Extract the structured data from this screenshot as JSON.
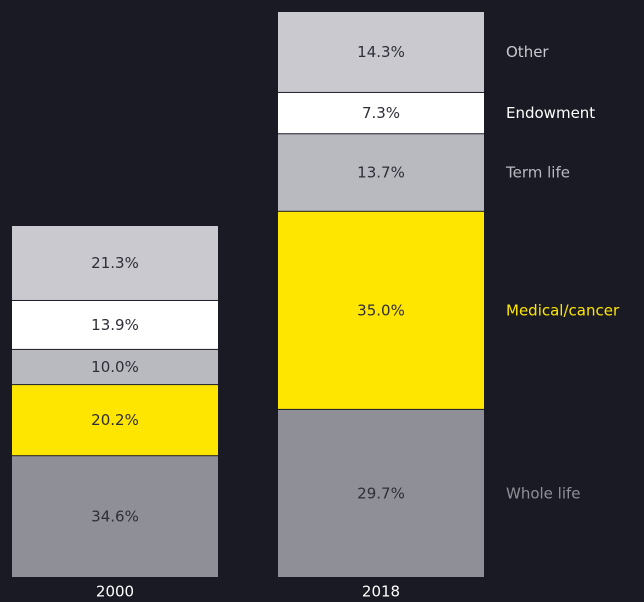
{
  "chart_data": {
    "type": "stacked_bar",
    "categories": [
      "2000",
      "2018"
    ],
    "series": [
      {
        "name": "Whole life",
        "color": "#8f9097",
        "values": [
          34.6,
          29.7
        ],
        "value_labels": [
          "34.6%",
          "29.7%"
        ]
      },
      {
        "name": "Medical/cancer",
        "color": "#ffe600",
        "values": [
          20.2,
          35.0
        ],
        "value_labels": [
          "20.2%",
          "35.0%"
        ]
      },
      {
        "name": "Term life",
        "color": "#b9b9c0",
        "values": [
          10.0,
          13.7
        ],
        "value_labels": [
          "10.0%",
          "13.7%"
        ]
      },
      {
        "name": "Endowment",
        "color": "#ffffff",
        "values": [
          13.9,
          7.3
        ],
        "value_labels": [
          "13.9%",
          "7.3%"
        ]
      },
      {
        "name": "Other",
        "color": "#c9c9cf",
        "values": [
          21.3,
          14.3
        ],
        "value_labels": [
          "21.3%",
          "14.3%"
        ]
      }
    ]
  }
}
